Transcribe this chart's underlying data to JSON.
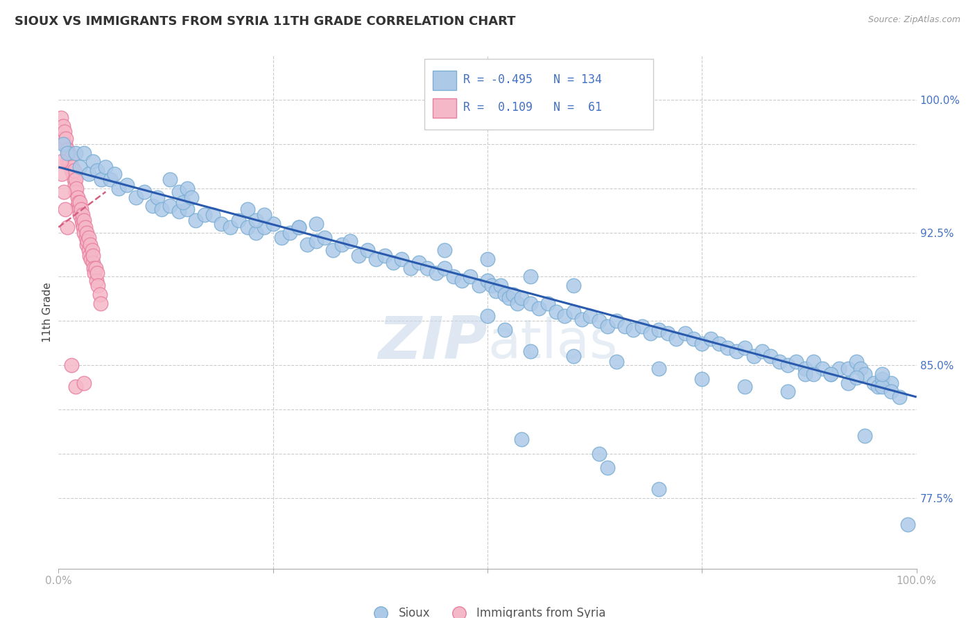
{
  "title": "SIOUX VS IMMIGRANTS FROM SYRIA 11TH GRADE CORRELATION CHART",
  "source_text": "Source: ZipAtlas.com",
  "ylabel": "11th Grade",
  "xmin": 0.0,
  "xmax": 1.0,
  "ymin": 0.735,
  "ymax": 1.025,
  "sioux_color": "#adc9e8",
  "sioux_edge": "#7bafd4",
  "syria_color": "#f5b8c8",
  "syria_edge": "#e87fa0",
  "sioux_line_color": "#2a5aad",
  "syria_line_color": "#d46080",
  "background_color": "#ffffff",
  "legend": {
    "sioux_r": "-0.495",
    "sioux_n": "134",
    "syria_r": " 0.109",
    "syria_n": " 61"
  },
  "sioux_dots": [
    [
      0.005,
      0.975
    ],
    [
      0.01,
      0.97
    ],
    [
      0.02,
      0.97
    ],
    [
      0.025,
      0.962
    ],
    [
      0.03,
      0.97
    ],
    [
      0.035,
      0.958
    ],
    [
      0.04,
      0.965
    ],
    [
      0.045,
      0.96
    ],
    [
      0.05,
      0.955
    ],
    [
      0.055,
      0.962
    ],
    [
      0.06,
      0.955
    ],
    [
      0.065,
      0.958
    ],
    [
      0.07,
      0.95
    ],
    [
      0.08,
      0.952
    ],
    [
      0.09,
      0.945
    ],
    [
      0.1,
      0.948
    ],
    [
      0.11,
      0.94
    ],
    [
      0.115,
      0.945
    ],
    [
      0.12,
      0.938
    ],
    [
      0.13,
      0.94
    ],
    [
      0.14,
      0.937
    ],
    [
      0.15,
      0.938
    ],
    [
      0.16,
      0.932
    ],
    [
      0.17,
      0.935
    ],
    [
      0.18,
      0.935
    ],
    [
      0.19,
      0.93
    ],
    [
      0.2,
      0.928
    ],
    [
      0.21,
      0.932
    ],
    [
      0.22,
      0.928
    ],
    [
      0.23,
      0.925
    ],
    [
      0.24,
      0.928
    ],
    [
      0.25,
      0.93
    ],
    [
      0.26,
      0.922
    ],
    [
      0.27,
      0.925
    ],
    [
      0.28,
      0.928
    ],
    [
      0.29,
      0.918
    ],
    [
      0.3,
      0.92
    ],
    [
      0.31,
      0.922
    ],
    [
      0.32,
      0.915
    ],
    [
      0.33,
      0.918
    ],
    [
      0.34,
      0.92
    ],
    [
      0.35,
      0.912
    ],
    [
      0.36,
      0.915
    ],
    [
      0.37,
      0.91
    ],
    [
      0.38,
      0.912
    ],
    [
      0.39,
      0.908
    ],
    [
      0.4,
      0.91
    ],
    [
      0.41,
      0.905
    ],
    [
      0.42,
      0.908
    ],
    [
      0.43,
      0.905
    ],
    [
      0.44,
      0.902
    ],
    [
      0.45,
      0.905
    ],
    [
      0.46,
      0.9
    ],
    [
      0.47,
      0.898
    ],
    [
      0.48,
      0.9
    ],
    [
      0.49,
      0.895
    ],
    [
      0.5,
      0.898
    ],
    [
      0.505,
      0.895
    ],
    [
      0.51,
      0.892
    ],
    [
      0.515,
      0.895
    ],
    [
      0.52,
      0.89
    ],
    [
      0.525,
      0.888
    ],
    [
      0.53,
      0.89
    ],
    [
      0.535,
      0.885
    ],
    [
      0.54,
      0.888
    ],
    [
      0.55,
      0.885
    ],
    [
      0.56,
      0.882
    ],
    [
      0.57,
      0.885
    ],
    [
      0.58,
      0.88
    ],
    [
      0.59,
      0.878
    ],
    [
      0.6,
      0.88
    ],
    [
      0.61,
      0.876
    ],
    [
      0.62,
      0.878
    ],
    [
      0.63,
      0.875
    ],
    [
      0.64,
      0.872
    ],
    [
      0.65,
      0.875
    ],
    [
      0.66,
      0.872
    ],
    [
      0.67,
      0.87
    ],
    [
      0.68,
      0.872
    ],
    [
      0.69,
      0.868
    ],
    [
      0.7,
      0.87
    ],
    [
      0.71,
      0.868
    ],
    [
      0.72,
      0.865
    ],
    [
      0.73,
      0.868
    ],
    [
      0.74,
      0.865
    ],
    [
      0.75,
      0.862
    ],
    [
      0.76,
      0.865
    ],
    [
      0.77,
      0.862
    ],
    [
      0.78,
      0.86
    ],
    [
      0.79,
      0.858
    ],
    [
      0.8,
      0.86
    ],
    [
      0.81,
      0.855
    ],
    [
      0.82,
      0.858
    ],
    [
      0.83,
      0.855
    ],
    [
      0.84,
      0.852
    ],
    [
      0.85,
      0.85
    ],
    [
      0.86,
      0.852
    ],
    [
      0.87,
      0.848
    ],
    [
      0.88,
      0.852
    ],
    [
      0.89,
      0.848
    ],
    [
      0.9,
      0.845
    ],
    [
      0.91,
      0.848
    ],
    [
      0.92,
      0.848
    ],
    [
      0.93,
      0.852
    ],
    [
      0.935,
      0.848
    ],
    [
      0.94,
      0.845
    ],
    [
      0.95,
      0.84
    ],
    [
      0.955,
      0.838
    ],
    [
      0.96,
      0.842
    ],
    [
      0.97,
      0.84
    ],
    [
      0.13,
      0.955
    ],
    [
      0.14,
      0.948
    ],
    [
      0.145,
      0.942
    ],
    [
      0.15,
      0.95
    ],
    [
      0.155,
      0.945
    ],
    [
      0.22,
      0.938
    ],
    [
      0.23,
      0.932
    ],
    [
      0.24,
      0.935
    ],
    [
      0.28,
      0.928
    ],
    [
      0.3,
      0.93
    ],
    [
      0.45,
      0.915
    ],
    [
      0.5,
      0.91
    ],
    [
      0.55,
      0.9
    ],
    [
      0.6,
      0.895
    ],
    [
      0.5,
      0.878
    ],
    [
      0.52,
      0.87
    ],
    [
      0.55,
      0.858
    ],
    [
      0.6,
      0.855
    ],
    [
      0.65,
      0.852
    ],
    [
      0.7,
      0.848
    ],
    [
      0.75,
      0.842
    ],
    [
      0.8,
      0.838
    ],
    [
      0.85,
      0.835
    ],
    [
      0.87,
      0.845
    ],
    [
      0.88,
      0.845
    ],
    [
      0.9,
      0.845
    ],
    [
      0.92,
      0.84
    ],
    [
      0.93,
      0.843
    ],
    [
      0.96,
      0.838
    ],
    [
      0.97,
      0.835
    ],
    [
      0.98,
      0.832
    ],
    [
      0.99,
      0.76
    ],
    [
      0.54,
      0.808
    ],
    [
      0.63,
      0.8
    ],
    [
      0.64,
      0.792
    ],
    [
      0.7,
      0.78
    ],
    [
      0.94,
      0.81
    ],
    [
      0.96,
      0.845
    ]
  ],
  "syria_dots": [
    [
      0.003,
      0.99
    ],
    [
      0.005,
      0.985
    ],
    [
      0.005,
      0.978
    ],
    [
      0.007,
      0.982
    ],
    [
      0.008,
      0.975
    ],
    [
      0.009,
      0.978
    ],
    [
      0.01,
      0.972
    ],
    [
      0.01,
      0.965
    ],
    [
      0.012,
      0.97
    ],
    [
      0.013,
      0.965
    ],
    [
      0.015,
      0.968
    ],
    [
      0.015,
      0.96
    ],
    [
      0.016,
      0.962
    ],
    [
      0.017,
      0.958
    ],
    [
      0.018,
      0.955
    ],
    [
      0.018,
      0.96
    ],
    [
      0.019,
      0.952
    ],
    [
      0.02,
      0.955
    ],
    [
      0.02,
      0.948
    ],
    [
      0.021,
      0.95
    ],
    [
      0.022,
      0.945
    ],
    [
      0.022,
      0.94
    ],
    [
      0.023,
      0.942
    ],
    [
      0.024,
      0.938
    ],
    [
      0.025,
      0.942
    ],
    [
      0.025,
      0.935
    ],
    [
      0.026,
      0.938
    ],
    [
      0.027,
      0.932
    ],
    [
      0.028,
      0.93
    ],
    [
      0.028,
      0.935
    ],
    [
      0.029,
      0.928
    ],
    [
      0.03,
      0.932
    ],
    [
      0.03,
      0.925
    ],
    [
      0.031,
      0.928
    ],
    [
      0.032,
      0.922
    ],
    [
      0.033,
      0.925
    ],
    [
      0.033,
      0.918
    ],
    [
      0.034,
      0.92
    ],
    [
      0.035,
      0.915
    ],
    [
      0.035,
      0.922
    ],
    [
      0.036,
      0.912
    ],
    [
      0.037,
      0.918
    ],
    [
      0.038,
      0.91
    ],
    [
      0.039,
      0.915
    ],
    [
      0.04,
      0.908
    ],
    [
      0.04,
      0.912
    ],
    [
      0.041,
      0.905
    ],
    [
      0.042,
      0.902
    ],
    [
      0.043,
      0.905
    ],
    [
      0.044,
      0.898
    ],
    [
      0.045,
      0.902
    ],
    [
      0.046,
      0.895
    ],
    [
      0.048,
      0.89
    ],
    [
      0.049,
      0.885
    ],
    [
      0.003,
      0.965
    ],
    [
      0.004,
      0.958
    ],
    [
      0.006,
      0.948
    ],
    [
      0.008,
      0.938
    ],
    [
      0.01,
      0.928
    ],
    [
      0.015,
      0.85
    ],
    [
      0.02,
      0.838
    ],
    [
      0.03,
      0.84
    ]
  ],
  "sioux_trend_x": [
    0.0,
    1.0
  ],
  "sioux_trend_y": [
    0.962,
    0.832
  ],
  "syria_trend_x": [
    0.0,
    0.055
  ],
  "syria_trend_y": [
    0.928,
    0.948
  ]
}
